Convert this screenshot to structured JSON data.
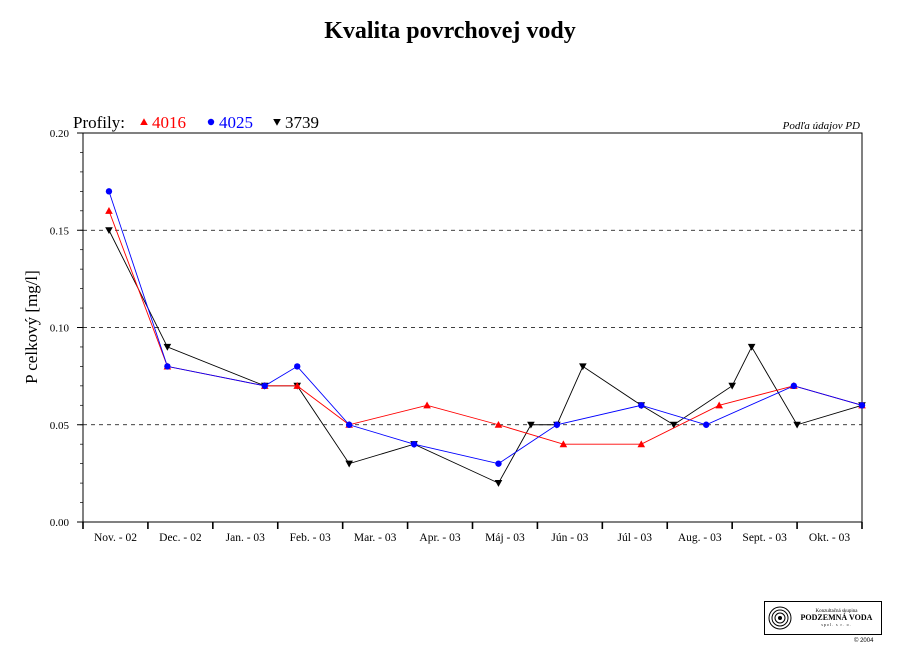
{
  "chart_data": {
    "type": "line",
    "title": "Kvalita povrchovej vody",
    "source_note": "Podľa údajov PD",
    "legend_label": "Profily:",
    "ylabel": "P celkový [mg/l]",
    "xlabel": "",
    "ylim": [
      0,
      0.2
    ],
    "yticks": [
      "0.00",
      "0.05",
      "0.10",
      "0.15",
      "0.20"
    ],
    "grid": "horizontal dashed at 0.05, 0.10, 0.15",
    "categories": [
      "Nov. - 02",
      "Dec. - 02",
      "Jan. - 03",
      "Feb. - 03",
      "Mar. - 03",
      "Apr. - 03",
      "Máj - 03",
      "Jún - 03",
      "Júl - 03",
      "Aug. - 03",
      "Sept. - 03",
      "Okt. - 03"
    ],
    "series": [
      {
        "name": "4016",
        "color": "#ff0000",
        "marker": "triangle-up",
        "points": [
          [
            0.4,
            0.16
          ],
          [
            1.3,
            0.08
          ],
          [
            2.8,
            0.07
          ],
          [
            3.3,
            0.07
          ],
          [
            4.1,
            0.05
          ],
          [
            5.3,
            0.06
          ],
          [
            6.4,
            0.05
          ],
          [
            7.4,
            0.04
          ],
          [
            8.6,
            0.04
          ],
          [
            9.8,
            0.06
          ],
          [
            10.95,
            0.07
          ],
          [
            12.0,
            0.06
          ]
        ]
      },
      {
        "name": "4025",
        "color": "#0000ff",
        "marker": "circle",
        "points": [
          [
            0.4,
            0.17
          ],
          [
            1.3,
            0.08
          ],
          [
            2.8,
            0.07
          ],
          [
            3.3,
            0.08
          ],
          [
            4.1,
            0.05
          ],
          [
            5.1,
            0.04
          ],
          [
            6.4,
            0.03
          ],
          [
            7.3,
            0.05
          ],
          [
            8.6,
            0.06
          ],
          [
            9.6,
            0.05
          ],
          [
            10.95,
            0.07
          ],
          [
            12.0,
            0.06
          ]
        ]
      },
      {
        "name": "3739",
        "color": "#000000",
        "marker": "triangle-down",
        "points": [
          [
            0.4,
            0.15
          ],
          [
            1.3,
            0.09
          ],
          [
            2.8,
            0.07
          ],
          [
            3.3,
            0.07
          ],
          [
            4.1,
            0.03
          ],
          [
            5.1,
            0.04
          ],
          [
            6.4,
            0.02
          ],
          [
            6.9,
            0.05
          ],
          [
            7.3,
            0.05
          ],
          [
            7.7,
            0.08
          ],
          [
            8.6,
            0.06
          ],
          [
            9.1,
            0.05
          ],
          [
            10.0,
            0.07
          ],
          [
            10.3,
            0.09
          ],
          [
            11.0,
            0.05
          ],
          [
            12.0,
            0.06
          ]
        ]
      }
    ]
  },
  "logo": {
    "line1": "Konzultačná skupina",
    "line2": "PODZEMNÁ VODA",
    "line3": "spol. s r. o."
  },
  "copyright": "© 2004"
}
